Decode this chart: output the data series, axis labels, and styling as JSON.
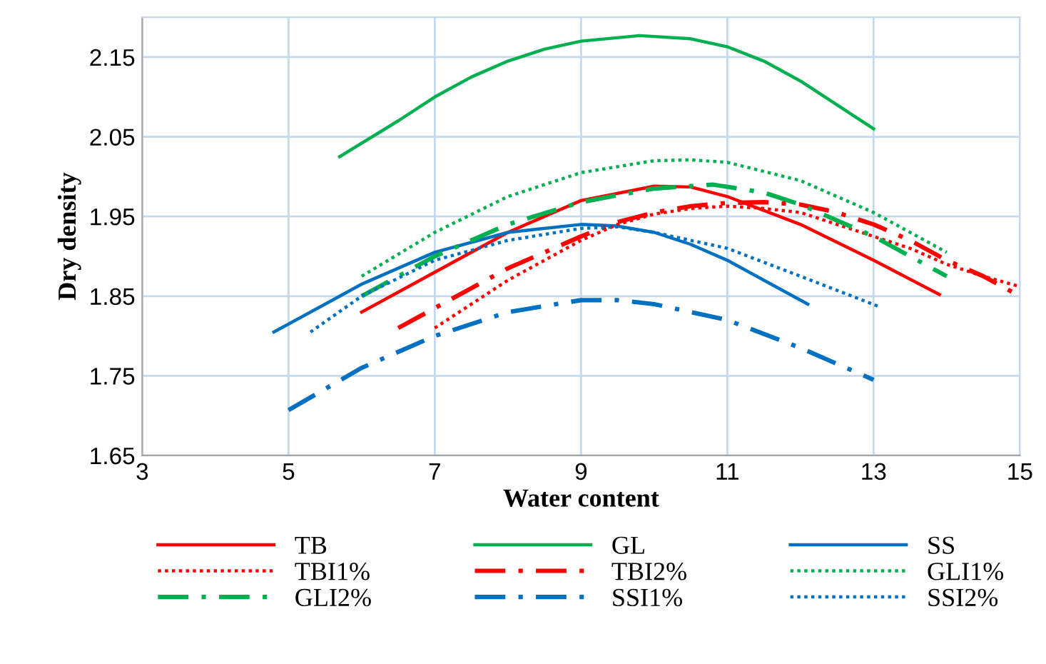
{
  "chart_data": {
    "type": "line",
    "xlabel": "Water content",
    "ylabel": "Dry density",
    "xlim": [
      3,
      15
    ],
    "xticks": [
      3,
      5,
      7,
      9,
      11,
      13,
      15
    ],
    "ylim": [
      1.65,
      2.2
    ],
    "yticks": [
      1.65,
      1.75,
      1.85,
      1.95,
      2.05,
      2.15
    ],
    "grid": true,
    "legend": "bottom",
    "marker": "none",
    "series": [
      {
        "name": "TB",
        "color": "#ff0000",
        "line_style": "solid",
        "x": [
          6,
          7,
          8,
          9,
          10,
          10.5,
          11,
          12,
          13,
          13.9
        ],
        "values": [
          1.83,
          1.88,
          1.93,
          1.97,
          1.988,
          1.987,
          1.975,
          1.94,
          1.895,
          1.852
        ]
      },
      {
        "name": "GL",
        "color": "#00b050",
        "line_style": "solid",
        "x": [
          5.7,
          6.5,
          7,
          7.5,
          8,
          8.5,
          9,
          9.8,
          10.5,
          11,
          11.5,
          12,
          12.5,
          13
        ],
        "values": [
          2.025,
          2.07,
          2.1,
          2.125,
          2.145,
          2.16,
          2.17,
          2.177,
          2.173,
          2.163,
          2.145,
          2.12,
          2.09,
          2.06
        ]
      },
      {
        "name": "SS",
        "color": "#0070c0",
        "line_style": "solid",
        "x": [
          4.8,
          5.5,
          6,
          7,
          8,
          9,
          9.5,
          10,
          10.5,
          11,
          11.5,
          12.1
        ],
        "values": [
          1.805,
          1.84,
          1.865,
          1.905,
          1.93,
          1.94,
          1.938,
          1.93,
          1.915,
          1.895,
          1.87,
          1.84
        ]
      },
      {
        "name": "TBI1%",
        "color": "#ff0000",
        "line_style": "dotted",
        "x": [
          7,
          7.5,
          8,
          8.5,
          9,
          9.5,
          10,
          10.5,
          11,
          11.5,
          12,
          12.5,
          13,
          13.5,
          14,
          14.5,
          15
        ],
        "values": [
          1.81,
          1.84,
          1.87,
          1.895,
          1.92,
          1.94,
          1.953,
          1.96,
          1.963,
          1.96,
          1.955,
          1.94,
          1.925,
          1.91,
          1.89,
          1.875,
          1.862
        ]
      },
      {
        "name": "TBI2%",
        "color": "#ff0000",
        "line_style": "dashdot",
        "x": [
          6.5,
          7,
          7.5,
          8,
          8.5,
          9,
          9.5,
          10,
          10.5,
          11,
          11.5,
          12,
          12.5,
          13,
          13.5,
          14,
          14.5,
          15
        ],
        "values": [
          1.81,
          1.835,
          1.86,
          1.885,
          1.905,
          1.925,
          1.943,
          1.955,
          1.963,
          1.967,
          1.968,
          1.965,
          1.955,
          1.94,
          1.92,
          1.895,
          1.875,
          1.85
        ]
      },
      {
        "name": "GLI1%",
        "color": "#00b050",
        "line_style": "dotted",
        "x": [
          6,
          7,
          8,
          9,
          10,
          10.5,
          11,
          12,
          13,
          14
        ],
        "values": [
          1.875,
          1.93,
          1.975,
          2.005,
          2.02,
          2.021,
          2.018,
          1.995,
          1.955,
          1.905
        ]
      },
      {
        "name": "GLI2%",
        "color": "#00b050",
        "line_style": "dashdot",
        "x": [
          6,
          7,
          8,
          9,
          10,
          10.8,
          11.5,
          12,
          13,
          14
        ],
        "values": [
          1.85,
          1.9,
          1.94,
          1.968,
          1.985,
          1.99,
          1.98,
          1.965,
          1.925,
          1.875
        ]
      },
      {
        "name": "SSI1%",
        "color": "#0070c0",
        "line_style": "dashdot",
        "x": [
          5,
          6,
          7,
          8,
          9,
          9.5,
          10,
          11,
          12,
          13
        ],
        "values": [
          1.707,
          1.76,
          1.8,
          1.83,
          1.845,
          1.845,
          1.84,
          1.82,
          1.785,
          1.745
        ]
      },
      {
        "name": "SSI2%",
        "color": "#0070c0",
        "line_style": "dotted",
        "x": [
          5.3,
          6,
          7,
          8,
          9,
          9.5,
          10,
          11,
          12,
          13.1
        ],
        "values": [
          1.805,
          1.85,
          1.895,
          1.92,
          1.935,
          1.937,
          1.93,
          1.91,
          1.875,
          1.836
        ]
      }
    ]
  }
}
